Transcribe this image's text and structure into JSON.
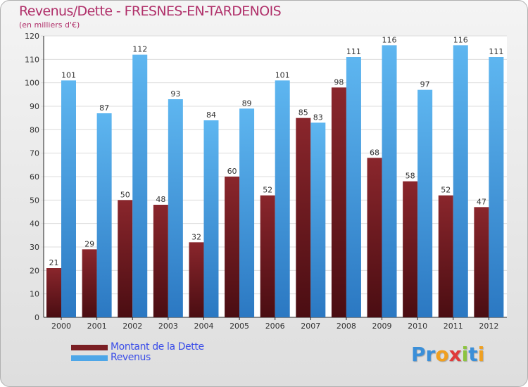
{
  "chart_data": {
    "type": "bar",
    "title": "Revenus/Dette - FRESNES-EN-TARDENOIS",
    "subtitle": "(en milliers d'€)",
    "categories": [
      "2000",
      "2001",
      "2002",
      "2003",
      "2004",
      "2005",
      "2006",
      "2007",
      "2008",
      "2009",
      "2010",
      "2011",
      "2012"
    ],
    "series": [
      {
        "name": "Montant de la Dette",
        "color": "#7a1f24",
        "values": [
          21,
          29,
          50,
          48,
          32,
          60,
          52,
          85,
          98,
          68,
          58,
          52,
          47
        ]
      },
      {
        "name": "Revenus",
        "color": "#4da6e8",
        "values": [
          101,
          87,
          112,
          93,
          84,
          89,
          101,
          83,
          111,
          116,
          97,
          116,
          111
        ]
      }
    ],
    "ylim": [
      0,
      120
    ],
    "yticks": [
      0,
      10,
      20,
      30,
      40,
      50,
      60,
      70,
      80,
      90,
      100,
      110,
      120
    ],
    "grid": true,
    "legend": "bottom-left"
  },
  "logo": {
    "letters": [
      "P",
      "r",
      "o",
      "x",
      "i",
      "t",
      "i"
    ],
    "colors": [
      "#3b8fd8",
      "#3b8fd8",
      "#f0a020",
      "#e03a3a",
      "#8cc43f",
      "#3b8fd8",
      "#f0a020"
    ]
  }
}
